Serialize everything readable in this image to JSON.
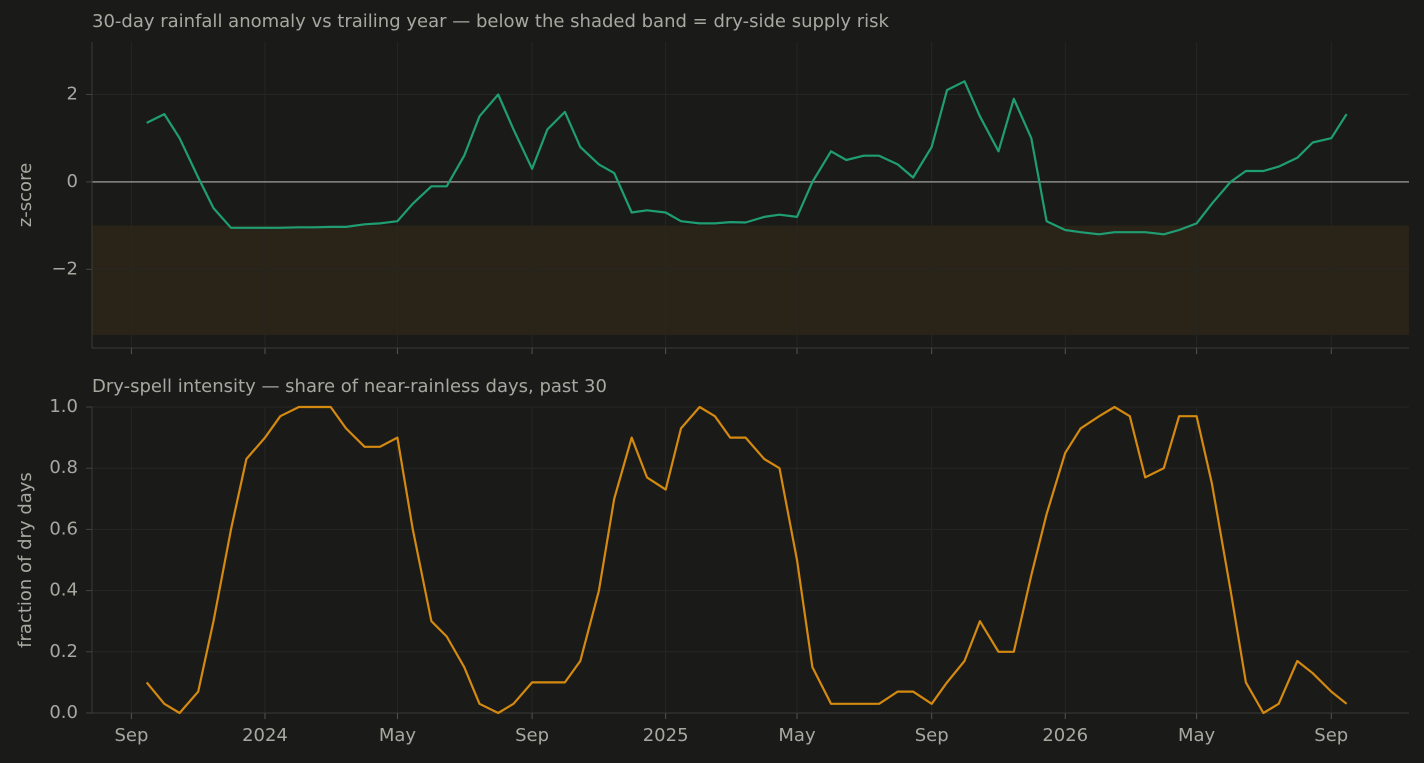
{
  "chart_data": [
    {
      "type": "line",
      "title": "30-day rainfall anomaly vs trailing year — below the shaded band = dry-side supply risk",
      "y_label": "z-score",
      "x": [
        "2023-09-15",
        "2023-10-01",
        "2023-10-15",
        "2023-11-01",
        "2023-11-15",
        "2023-12-01",
        "2023-12-15",
        "2024-01-01",
        "2024-01-15",
        "2024-02-01",
        "2024-02-15",
        "2024-03-01",
        "2024-03-15",
        "2024-04-01",
        "2024-04-15",
        "2024-05-01",
        "2024-05-15",
        "2024-06-01",
        "2024-06-15",
        "2024-07-01",
        "2024-07-15",
        "2024-08-01",
        "2024-08-15",
        "2024-09-01",
        "2024-09-15",
        "2024-10-01",
        "2024-10-15",
        "2024-11-01",
        "2024-11-15",
        "2024-12-01",
        "2024-12-15",
        "2025-01-01",
        "2025-01-15",
        "2025-02-01",
        "2025-02-15",
        "2025-03-01",
        "2025-03-15",
        "2025-04-01",
        "2025-04-15",
        "2025-05-01",
        "2025-05-15",
        "2025-06-01",
        "2025-06-15",
        "2025-07-01",
        "2025-07-15",
        "2025-08-01",
        "2025-08-15",
        "2025-09-01",
        "2025-09-15",
        "2025-10-01",
        "2025-10-15",
        "2025-11-01",
        "2025-11-15",
        "2025-12-01",
        "2025-12-15",
        "2026-01-01",
        "2026-01-15",
        "2026-02-01",
        "2026-02-15",
        "2026-03-01",
        "2026-03-15",
        "2026-04-01",
        "2026-04-15",
        "2026-05-01",
        "2026-05-15",
        "2026-06-01",
        "2026-06-15",
        "2026-07-01",
        "2026-07-15",
        "2026-08-01",
        "2026-08-15",
        "2026-09-01",
        "2026-09-15"
      ],
      "series": [
        {
          "color": "#1f9e74",
          "values": [
            1.35,
            1.55,
            1.0,
            0.1,
            -0.6,
            -1.05,
            -1.05,
            -1.05,
            -1.05,
            -1.04,
            -1.04,
            -1.03,
            -1.03,
            -0.97,
            -0.95,
            -0.9,
            -0.5,
            -0.1,
            -0.1,
            0.6,
            1.5,
            2.0,
            1.2,
            0.3,
            1.2,
            1.6,
            0.8,
            0.4,
            0.2,
            -0.7,
            -0.65,
            -0.7,
            -0.9,
            -0.95,
            -0.95,
            -0.92,
            -0.93,
            -0.8,
            -0.75,
            -0.8,
            0.0,
            0.7,
            0.5,
            0.6,
            0.6,
            0.4,
            0.1,
            0.8,
            2.1,
            2.3,
            1.5,
            0.7,
            1.9,
            1.0,
            -0.9,
            -1.1,
            -1.15,
            -1.2,
            -1.15,
            -1.15,
            -1.15,
            -1.2,
            -1.1,
            -0.95,
            -0.5,
            0.0,
            0.25,
            0.25,
            0.35,
            0.55,
            0.9,
            1.0,
            1.55
          ]
        }
      ],
      "band": [
        -3.5,
        -1
      ],
      "band_color": "#2a2418",
      "reference_line": 0,
      "xlim": [
        "2023-07-27",
        "2026-11-11"
      ],
      "xticks": [
        "2023-09-01",
        "2024-01-01",
        "2024-05-01",
        "2024-09-01",
        "2025-01-01",
        "2025-05-01",
        "2025-09-01",
        "2026-01-01",
        "2026-05-01",
        "2026-09-01"
      ],
      "ylim": [
        -3.8,
        3.2
      ],
      "yticks": [
        {
          "value": -2,
          "label": "−2"
        },
        0,
        2
      ],
      "grid": true
    },
    {
      "type": "line",
      "title": "Dry-spell intensity — share of near-rainless days, past 30",
      "y_label": "fraction of dry days",
      "x": [
        "2023-09-15",
        "2023-10-01",
        "2023-10-15",
        "2023-11-01",
        "2023-11-15",
        "2023-12-01",
        "2023-12-15",
        "2024-01-01",
        "2024-01-15",
        "2024-02-01",
        "2024-02-15",
        "2024-03-01",
        "2024-03-15",
        "2024-04-01",
        "2024-04-15",
        "2024-05-01",
        "2024-05-15",
        "2024-06-01",
        "2024-06-15",
        "2024-07-01",
        "2024-07-15",
        "2024-08-01",
        "2024-08-15",
        "2024-09-01",
        "2024-09-15",
        "2024-10-01",
        "2024-10-15",
        "2024-11-01",
        "2024-11-15",
        "2024-12-01",
        "2024-12-15",
        "2025-01-01",
        "2025-01-15",
        "2025-02-01",
        "2025-02-15",
        "2025-03-01",
        "2025-03-15",
        "2025-04-01",
        "2025-04-15",
        "2025-05-01",
        "2025-05-15",
        "2025-06-01",
        "2025-06-15",
        "2025-07-01",
        "2025-07-15",
        "2025-08-01",
        "2025-08-15",
        "2025-09-01",
        "2025-09-15",
        "2025-10-01",
        "2025-10-15",
        "2025-11-01",
        "2025-11-15",
        "2025-12-01",
        "2025-12-15",
        "2026-01-01",
        "2026-01-15",
        "2026-02-01",
        "2026-02-15",
        "2026-03-01",
        "2026-03-15",
        "2026-04-01",
        "2026-04-15",
        "2026-05-01",
        "2026-05-15",
        "2026-06-01",
        "2026-06-15",
        "2026-07-01",
        "2026-07-15",
        "2026-08-01",
        "2026-08-15",
        "2026-09-01",
        "2026-09-15"
      ],
      "series": [
        {
          "color": "#d4890f",
          "values": [
            0.1,
            0.03,
            0.0,
            0.07,
            0.3,
            0.6,
            0.83,
            0.9,
            0.97,
            1.0,
            1.0,
            1.0,
            0.93,
            0.87,
            0.87,
            0.9,
            0.6,
            0.3,
            0.25,
            0.15,
            0.03,
            0.0,
            0.03,
            0.1,
            0.1,
            0.1,
            0.17,
            0.4,
            0.7,
            0.9,
            0.77,
            0.73,
            0.93,
            1.0,
            0.97,
            0.9,
            0.9,
            0.83,
            0.8,
            0.5,
            0.15,
            0.03,
            0.03,
            0.03,
            0.03,
            0.07,
            0.07,
            0.03,
            0.1,
            0.17,
            0.3,
            0.2,
            0.2,
            0.45,
            0.65,
            0.85,
            0.93,
            0.97,
            1.0,
            0.97,
            0.77,
            0.8,
            0.97,
            0.97,
            0.75,
            0.4,
            0.1,
            0.0,
            0.03,
            0.17,
            0.13,
            0.07,
            0.03
          ]
        }
      ],
      "xlim": [
        "2023-07-27",
        "2026-11-11"
      ],
      "xticks": [
        {
          "value": "2023-09-01",
          "label": "Sep"
        },
        {
          "value": "2024-01-01",
          "label": "2024"
        },
        {
          "value": "2024-05-01",
          "label": "May"
        },
        {
          "value": "2024-09-01",
          "label": "Sep"
        },
        {
          "value": "2025-01-01",
          "label": "2025"
        },
        {
          "value": "2025-05-01",
          "label": "May"
        },
        {
          "value": "2025-09-01",
          "label": "Sep"
        },
        {
          "value": "2026-01-01",
          "label": "2026"
        },
        {
          "value": "2026-05-01",
          "label": "May"
        },
        {
          "value": "2026-09-01",
          "label": "Sep"
        }
      ],
      "ylim": [
        0,
        1
      ],
      "yticks": [
        {
          "value": 0,
          "label": "0.0"
        },
        0.2,
        0.4,
        0.6,
        0.8,
        {
          "value": 1,
          "label": "1.0"
        }
      ],
      "grid": true
    }
  ]
}
